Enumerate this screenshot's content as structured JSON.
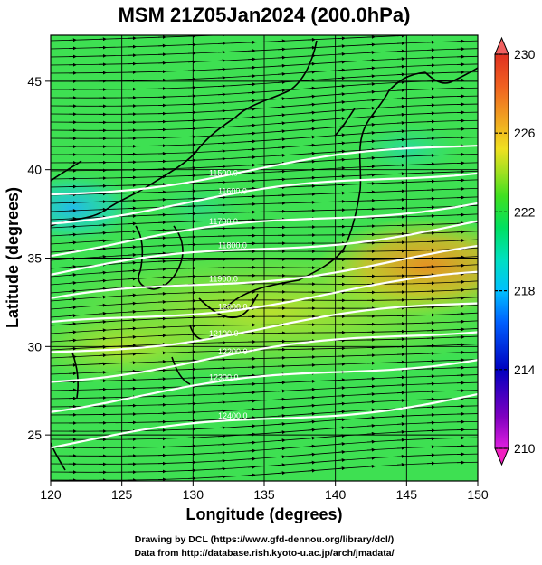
{
  "title": "MSM 21Z05Jan2024 (200.0hPa)",
  "x_axis": {
    "label": "Longitude (degrees)",
    "range": [
      120,
      150
    ],
    "ticks": [
      120,
      125,
      130,
      135,
      140,
      145,
      150
    ],
    "tick_labels": [
      "120",
      "125",
      "130",
      "135",
      "140",
      "145",
      "150"
    ]
  },
  "y_axis": {
    "label": "Latitude  (degrees)",
    "range": [
      22.4,
      47.6
    ],
    "ticks": [
      25,
      30,
      35,
      40,
      45
    ],
    "tick_labels": [
      "25",
      "30",
      "35",
      "40",
      "45"
    ]
  },
  "colorbar": {
    "range": [
      210,
      230
    ],
    "labels": [
      "230",
      "226",
      "222",
      "218",
      "214",
      "210"
    ],
    "label_values": [
      230,
      226,
      222,
      218,
      214,
      210
    ],
    "colors": [
      "#e020e0",
      "#8000c0",
      "#0000c0",
      "#0060ff",
      "#00c0ff",
      "#00e0c0",
      "#00e060",
      "#40e020",
      "#a0e020",
      "#f0e020",
      "#f0a020",
      "#f06020",
      "#e03020"
    ]
  },
  "contours": [
    {
      "label": "11500.0",
      "lat": 38.6
    },
    {
      "label": "11600.0",
      "lat": 37.2
    },
    {
      "label": "11700.0",
      "lat": 35.4
    },
    {
      "label": "11800.0",
      "lat": 34.1
    },
    {
      "label": "11900.0",
      "lat": 32.5
    },
    {
      "label": "12000.0",
      "lat": 31.1
    },
    {
      "label": "12100.0",
      "lat": 29.6
    },
    {
      "label": "12200.0",
      "lat": 28.2
    },
    {
      "label": "12300.0",
      "lat": 26.6
    },
    {
      "label": "12400.0",
      "lat": 24.4
    }
  ],
  "credits": [
    "Drawing by DCL (https://www.gfd-dennou.org/library/dcl/)",
    "Data from http://database.rish.kyoto-u.ac.jp/arch/jmadata/"
  ]
}
